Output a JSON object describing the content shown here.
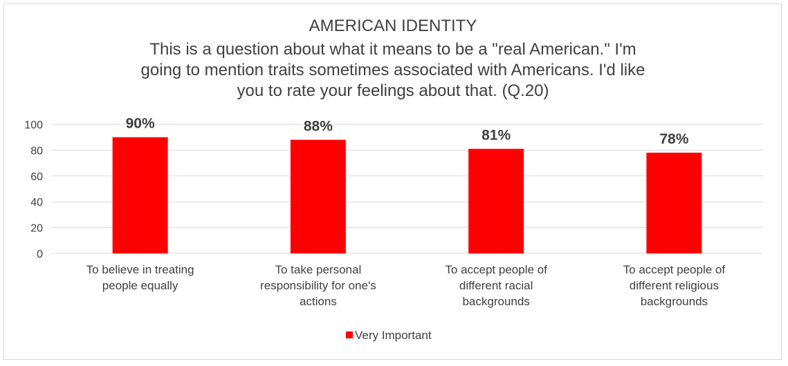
{
  "chart_data": {
    "type": "bar",
    "title": "AMERICAN IDENTITY",
    "subtitle_lines": [
      "This is a question about what it means to be a \"real American.\" I'm",
      "going to mention traits sometimes associated with Americans. I'd like",
      "you to rate your feelings about that. (Q.20)"
    ],
    "categories": [
      [
        "To believe in treating",
        "people equally"
      ],
      [
        "To take personal",
        "responsibility for one's",
        "actions"
      ],
      [
        "To accept people of",
        "different racial",
        "backgrounds"
      ],
      [
        "To accept people of",
        "different religious",
        "backgrounds"
      ]
    ],
    "series": [
      {
        "name": "Very Important",
        "color": "#ff0000",
        "values": [
          90,
          88,
          81,
          78
        ],
        "labels": [
          "90%",
          "88%",
          "81%",
          "78%"
        ]
      }
    ],
    "ylim": [
      0,
      100
    ],
    "yticks": [
      "0",
      "20",
      "40",
      "60",
      "80",
      "100"
    ],
    "grid": true,
    "legend_position": "bottom"
  }
}
